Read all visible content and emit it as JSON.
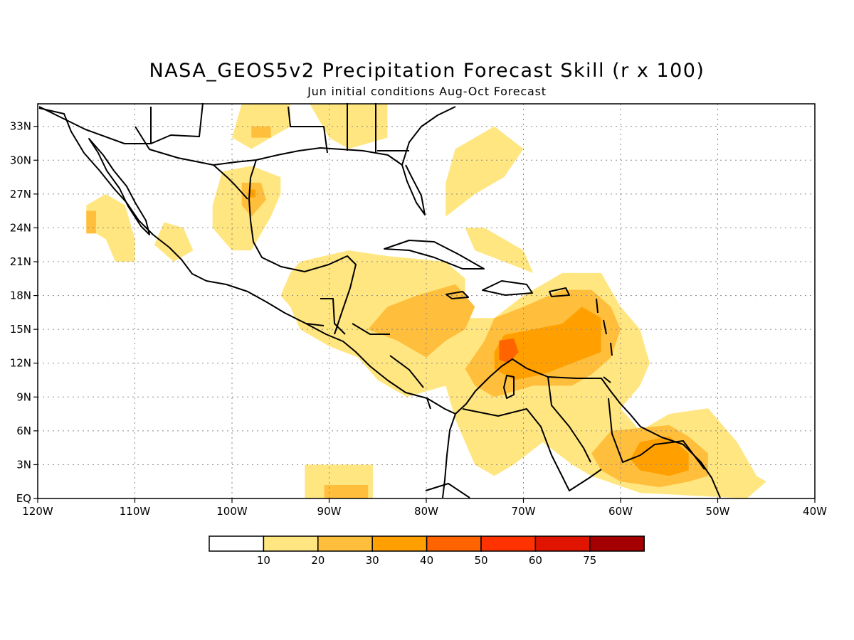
{
  "title": "NASA_GEOS5v2 Precipitation Forecast Skill (r x 100)",
  "subtitle": "Jun initial conditions  Aug-Oct Forecast",
  "map": {
    "lon_range": [
      -120,
      -40
    ],
    "lat_range": [
      0,
      35
    ],
    "lon_ticks": [
      {
        "value": -120,
        "label": "120W"
      },
      {
        "value": -110,
        "label": "110W"
      },
      {
        "value": -100,
        "label": "100W"
      },
      {
        "value": -90,
        "label": "90W"
      },
      {
        "value": -80,
        "label": "80W"
      },
      {
        "value": -70,
        "label": "70W"
      },
      {
        "value": -60,
        "label": "60W"
      },
      {
        "value": -50,
        "label": "50W"
      },
      {
        "value": -40,
        "label": "40W"
      }
    ],
    "lat_ticks": [
      {
        "value": 0,
        "label": "EQ"
      },
      {
        "value": 3,
        "label": "3N"
      },
      {
        "value": 6,
        "label": "6N"
      },
      {
        "value": 9,
        "label": "9N"
      },
      {
        "value": 12,
        "label": "12N"
      },
      {
        "value": 15,
        "label": "15N"
      },
      {
        "value": 18,
        "label": "18N"
      },
      {
        "value": 21,
        "label": "21N"
      },
      {
        "value": 24,
        "label": "24N"
      },
      {
        "value": 27,
        "label": "27N"
      },
      {
        "value": 30,
        "label": "30N"
      },
      {
        "value": 33,
        "label": "33N"
      }
    ],
    "grid": "dotted"
  },
  "legend": {
    "colors": [
      "#ffffff",
      "#ffe680",
      "#ffbe3c",
      "#ffa000",
      "#ff6400",
      "#ff3200",
      "#e11400",
      "#a50000"
    ],
    "labels": [
      "10",
      "20",
      "30",
      "40",
      "50",
      "60",
      "75"
    ]
  },
  "skill_regions": [
    {
      "level": 1,
      "points": [
        [
          -115,
          26
        ],
        [
          -113,
          27
        ],
        [
          -111,
          26
        ],
        [
          -110,
          23
        ],
        [
          -110,
          21
        ],
        [
          -112,
          21
        ],
        [
          -113,
          23
        ],
        [
          -115,
          24
        ]
      ]
    },
    {
      "level": 2,
      "points": [
        [
          -115,
          25.5
        ],
        [
          -114,
          25.5
        ],
        [
          -114,
          23.5
        ],
        [
          -115,
          23.5
        ]
      ]
    },
    {
      "level": 1,
      "points": [
        [
          -101,
          29
        ],
        [
          -98,
          29.5
        ],
        [
          -95,
          28.5
        ],
        [
          -95,
          27
        ],
        [
          -96,
          25
        ],
        [
          -98,
          22
        ],
        [
          -100,
          22
        ],
        [
          -102,
          24
        ],
        [
          -102,
          26
        ]
      ]
    },
    {
      "level": 2,
      "points": [
        [
          -99,
          28
        ],
        [
          -97,
          28
        ],
        [
          -96.5,
          26.5
        ],
        [
          -98,
          25
        ],
        [
          -99,
          26
        ]
      ]
    },
    {
      "level": 3,
      "points": [
        [
          -98.3,
          27.4
        ],
        [
          -97.6,
          27.4
        ],
        [
          -97.6,
          26.7
        ],
        [
          -98.3,
          26.7
        ]
      ]
    },
    {
      "level": 1,
      "points": [
        [
          -107,
          24.5
        ],
        [
          -105,
          24
        ],
        [
          -104,
          22
        ],
        [
          -106,
          21
        ],
        [
          -108,
          22.5
        ]
      ]
    },
    {
      "level": 1,
      "points": [
        [
          -99,
          35
        ],
        [
          -94,
          35
        ],
        [
          -94,
          33
        ],
        [
          -98,
          31
        ],
        [
          -100,
          32
        ]
      ]
    },
    {
      "level": 2,
      "points": [
        [
          -98,
          33
        ],
        [
          -96,
          33
        ],
        [
          -96,
          32
        ],
        [
          -98,
          32
        ]
      ]
    },
    {
      "level": 1,
      "points": [
        [
          -92,
          35
        ],
        [
          -84,
          35
        ],
        [
          -84,
          32
        ],
        [
          -88,
          31
        ],
        [
          -90,
          32
        ]
      ]
    },
    {
      "level": 1,
      "points": [
        [
          -77,
          31
        ],
        [
          -73,
          33
        ],
        [
          -70,
          31
        ],
        [
          -72,
          28.5
        ],
        [
          -75,
          27
        ],
        [
          -78,
          25
        ],
        [
          -78,
          28
        ]
      ]
    },
    {
      "level": 1,
      "points": [
        [
          -76,
          24
        ],
        [
          -74,
          24
        ],
        [
          -70,
          22
        ],
        [
          -69,
          20
        ],
        [
          -72,
          21
        ],
        [
          -75,
          22
        ]
      ]
    },
    {
      "level": 1,
      "points": [
        [
          -93,
          21
        ],
        [
          -88,
          22
        ],
        [
          -84,
          21.5
        ],
        [
          -78,
          21
        ],
        [
          -76,
          19.5
        ],
        [
          -76,
          16
        ],
        [
          -73,
          16
        ],
        [
          -70,
          18
        ],
        [
          -68,
          19
        ],
        [
          -66,
          20
        ],
        [
          -62,
          20
        ],
        [
          -60,
          17
        ],
        [
          -58,
          15
        ],
        [
          -57,
          12
        ],
        [
          -58,
          10
        ],
        [
          -60,
          8
        ],
        [
          -58,
          6
        ],
        [
          -55,
          7.5
        ],
        [
          -51,
          8
        ],
        [
          -48,
          5
        ],
        [
          -46,
          2
        ],
        [
          -45,
          1.5
        ],
        [
          -47,
          0
        ],
        [
          -58,
          0.5
        ],
        [
          -63,
          2
        ],
        [
          -65,
          3
        ],
        [
          -68,
          5
        ],
        [
          -71,
          3
        ],
        [
          -73,
          2
        ],
        [
          -75,
          3
        ],
        [
          -76,
          5
        ],
        [
          -77,
          7
        ],
        [
          -78,
          10
        ],
        [
          -82,
          9
        ],
        [
          -85,
          10.5
        ],
        [
          -87,
          12.5
        ],
        [
          -90,
          13.5
        ],
        [
          -93,
          15
        ],
        [
          -94,
          17
        ],
        [
          -95,
          18
        ],
        [
          -94,
          20
        ]
      ]
    },
    {
      "level": 2,
      "points": [
        [
          -81,
          18
        ],
        [
          -77,
          19
        ],
        [
          -75,
          17
        ],
        [
          -76,
          15
        ],
        [
          -78,
          14
        ],
        [
          -80,
          12.5
        ],
        [
          -83,
          14
        ],
        [
          -86,
          15
        ],
        [
          -84,
          17
        ]
      ]
    },
    {
      "level": 2,
      "points": [
        [
          -73,
          16
        ],
        [
          -70,
          17
        ],
        [
          -66,
          18.5
        ],
        [
          -63,
          18.5
        ],
        [
          -61,
          17
        ],
        [
          -60,
          15
        ],
        [
          -61,
          12.5
        ],
        [
          -63,
          11
        ],
        [
          -65,
          10
        ],
        [
          -69,
          10
        ],
        [
          -73,
          9
        ],
        [
          -75,
          10
        ],
        [
          -76,
          11.5
        ],
        [
          -74,
          14
        ]
      ]
    },
    {
      "level": 3,
      "points": [
        [
          -72,
          14.5
        ],
        [
          -69,
          15
        ],
        [
          -66,
          15.5
        ],
        [
          -64,
          17
        ],
        [
          -62,
          16
        ],
        [
          -62,
          13
        ],
        [
          -65,
          12
        ],
        [
          -68,
          11
        ],
        [
          -71,
          10.5
        ],
        [
          -73,
          11.5
        ],
        [
          -73,
          13
        ]
      ]
    },
    {
      "level": 4,
      "points": [
        [
          -72.5,
          14
        ],
        [
          -71,
          14.2
        ],
        [
          -70.5,
          13
        ],
        [
          -71.5,
          12
        ],
        [
          -72.5,
          12.3
        ]
      ]
    },
    {
      "level": 2,
      "points": [
        [
          -61,
          6
        ],
        [
          -55,
          6.5
        ],
        [
          -53,
          5.5
        ],
        [
          -51,
          4
        ],
        [
          -51,
          2
        ],
        [
          -53,
          1.5
        ],
        [
          -56,
          1
        ],
        [
          -60,
          1.5
        ],
        [
          -62,
          2.5
        ],
        [
          -63,
          4
        ]
      ]
    },
    {
      "level": 3,
      "points": [
        [
          -58,
          5
        ],
        [
          -55,
          5.5
        ],
        [
          -53,
          4
        ],
        [
          -53,
          2.5
        ],
        [
          -55,
          2
        ],
        [
          -58,
          2.5
        ],
        [
          -59,
          3.5
        ]
      ]
    },
    {
      "level": 1,
      "points": [
        [
          -92.5,
          3
        ],
        [
          -85.5,
          3
        ],
        [
          -85.5,
          0
        ],
        [
          -92.5,
          0
        ]
      ]
    },
    {
      "level": 2,
      "points": [
        [
          -90.5,
          1.2
        ],
        [
          -86,
          1.2
        ],
        [
          -86,
          0
        ],
        [
          -90.5,
          0
        ]
      ]
    }
  ]
}
